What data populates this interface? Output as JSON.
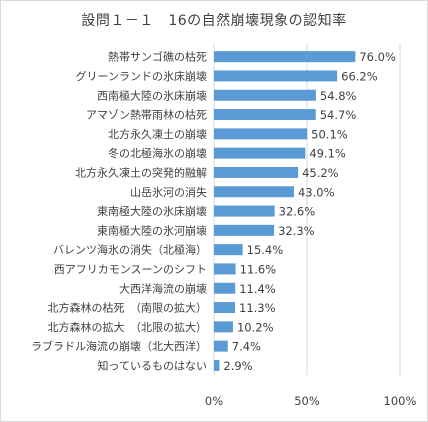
{
  "chart_data": {
    "type": "bar",
    "orientation": "horizontal",
    "title": "設問１－１　16の自然崩壊現象の認知率",
    "categories": [
      "熱帯サンゴ礁の枯死",
      "グリーンランドの氷床崩壊",
      "西南極大陸の氷床崩壊",
      "アマゾン熱帯雨林の枯死",
      "北方永久凍土の崩壊",
      "冬の北極海氷の崩壊",
      "北方永久凍土の突発的融解",
      "山岳氷河の消失",
      "東南極大陸の氷床崩壊",
      "東南極大陸の氷河崩壊",
      "バレンツ海氷の消失（北極海）",
      "西アフリカモンスーンのシフト",
      "大西洋海流の崩壊",
      "北方森林の枯死　（南限の拡大）",
      "北方森林の拡大　（北限の拡大）",
      "ラブラドル海流の崩壊（北大西洋）",
      "知っているものはない"
    ],
    "values": [
      76.0,
      66.2,
      54.8,
      54.7,
      50.1,
      49.1,
      45.2,
      43.0,
      32.6,
      32.3,
      15.4,
      11.6,
      11.4,
      11.3,
      10.2,
      7.4,
      2.9
    ],
    "value_labels": [
      "76.0%",
      "66.2%",
      "54.8%",
      "54.7%",
      "50.1%",
      "49.1%",
      "45.2%",
      "43.0%",
      "32.6%",
      "32.3%",
      "15.4%",
      "11.6%",
      "11.4%",
      "11.3%",
      "10.2%",
      "7.4%",
      "2.9%"
    ],
    "xticks": [
      "0%",
      "50%",
      "100%"
    ],
    "xlim": [
      0,
      100
    ],
    "bar_color": "#5b9bd5",
    "grid": "vertical"
  }
}
